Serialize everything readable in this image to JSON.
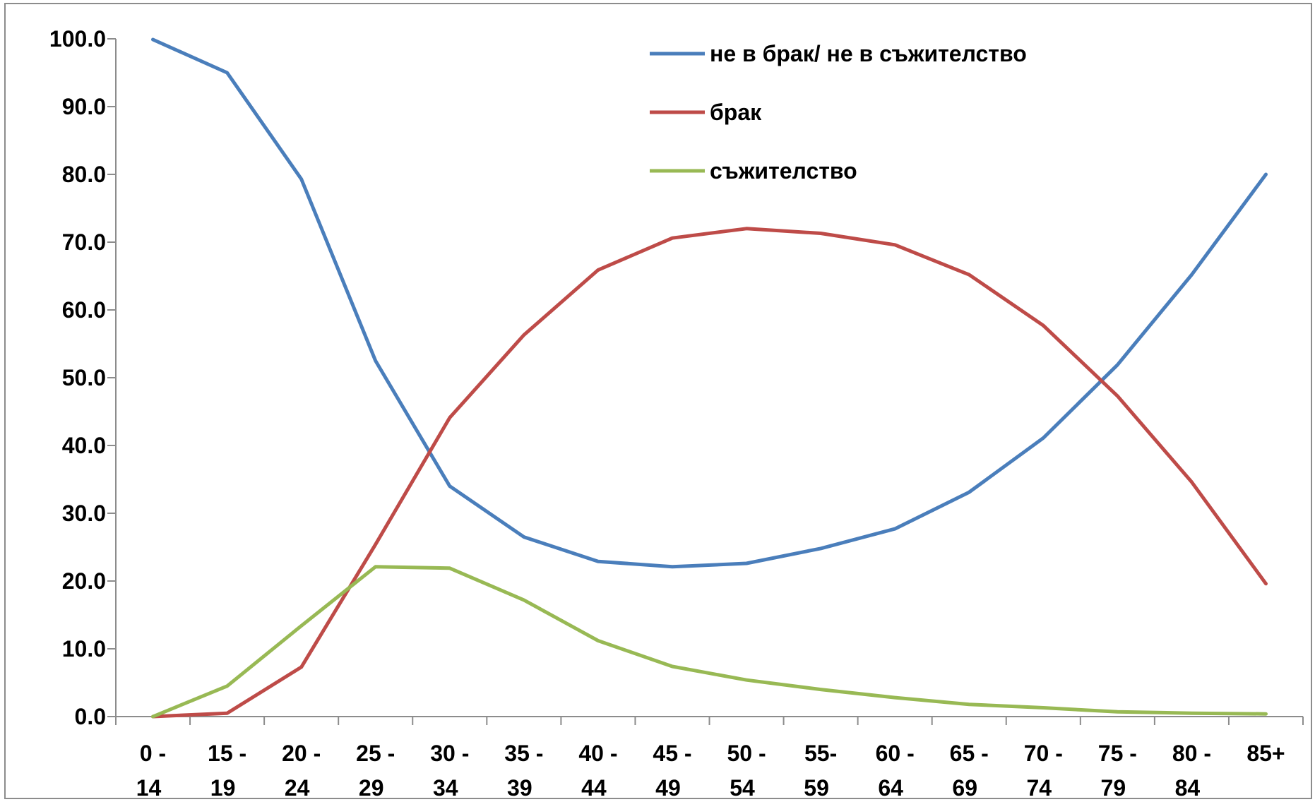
{
  "chart_data": {
    "type": "line",
    "title": "",
    "xlabel": "",
    "ylabel": "",
    "ylim": [
      0,
      100
    ],
    "ytick_values": [
      0,
      10,
      20,
      30,
      40,
      50,
      60,
      70,
      80,
      90,
      100
    ],
    "ytick_labels": [
      "0.0",
      "10.0",
      "20.0",
      "30.0",
      "40.0",
      "50.0",
      "60.0",
      "70.0",
      "80.0",
      "90.0",
      "100.0"
    ],
    "categories": [
      [
        "0 -",
        "14"
      ],
      [
        "15 -",
        "19"
      ],
      [
        "20 -",
        "24"
      ],
      [
        "25 -",
        "29"
      ],
      [
        "30 -",
        "34"
      ],
      [
        "35 -",
        "39"
      ],
      [
        "40 -",
        "44"
      ],
      [
        "45 -",
        "49"
      ],
      [
        "50 -",
        "54"
      ],
      [
        "55-",
        "59"
      ],
      [
        "60 -",
        "64"
      ],
      [
        "65 -",
        "69"
      ],
      [
        "70 -",
        "74"
      ],
      [
        "75 -",
        "79"
      ],
      [
        "80 -",
        "84"
      ],
      [
        "85+",
        ""
      ]
    ],
    "grid": false,
    "legend_position": "top-right",
    "series": [
      {
        "name": "не в брак/ не в съжителство",
        "color": "#4a7ebb",
        "values": [
          99.9,
          95.0,
          79.3,
          52.5,
          34.0,
          26.5,
          22.9,
          22.1,
          22.6,
          24.8,
          27.7,
          33.1,
          41.1,
          51.9,
          65.2,
          80.0
        ]
      },
      {
        "name": "брак",
        "color": "#be4b48",
        "values": [
          0.0,
          0.5,
          7.3,
          25.4,
          44.1,
          56.3,
          65.9,
          70.6,
          72.0,
          71.3,
          69.6,
          65.2,
          57.7,
          47.3,
          34.6,
          19.6
        ]
      },
      {
        "name": "съжителство",
        "color": "#98b954",
        "values": [
          0.0,
          4.5,
          13.4,
          22.1,
          21.9,
          17.2,
          11.2,
          7.4,
          5.4,
          4.0,
          2.8,
          1.8,
          1.3,
          0.7,
          0.5,
          0.4
        ]
      }
    ]
  }
}
